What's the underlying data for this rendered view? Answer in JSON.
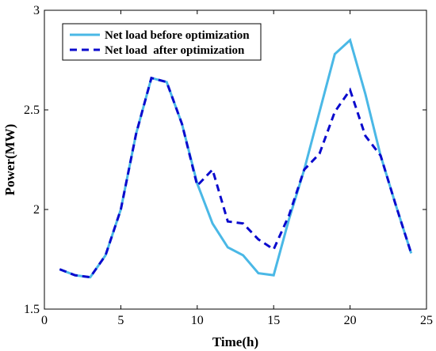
{
  "chart_data": {
    "type": "line",
    "xlabel": "Time(h)",
    "ylabel": "Power(MW)",
    "xlim": [
      0,
      25
    ],
    "ylim": [
      1.5,
      3
    ],
    "xticks": [
      0,
      5,
      10,
      15,
      20,
      25
    ],
    "yticks": [
      1.5,
      2,
      2.5,
      3
    ],
    "ytick_labels": [
      "1.5",
      "2",
      "2.5",
      "3"
    ],
    "grid": false,
    "legend_position": "top-left",
    "x": [
      1,
      2,
      3,
      4,
      5,
      6,
      7,
      8,
      9,
      10,
      11,
      12,
      13,
      14,
      15,
      16,
      17,
      18,
      19,
      20,
      21,
      22,
      23,
      24
    ],
    "series": [
      {
        "name": "Net load before optimization",
        "color": "#4ab8e6",
        "style": "solid",
        "values": [
          1.7,
          1.67,
          1.66,
          1.77,
          2.0,
          2.38,
          2.66,
          2.64,
          2.43,
          2.13,
          1.93,
          1.81,
          1.77,
          1.68,
          1.67,
          1.95,
          2.2,
          2.49,
          2.78,
          2.85,
          2.58,
          2.27,
          2.02,
          1.78
        ]
      },
      {
        "name": "Net load  after optimization",
        "color": "#0a0acd",
        "style": "dashed",
        "values": [
          1.7,
          1.67,
          1.66,
          1.77,
          2.0,
          2.38,
          2.66,
          2.64,
          2.43,
          2.12,
          2.2,
          1.94,
          1.93,
          1.85,
          1.8,
          1.97,
          2.2,
          2.28,
          2.49,
          2.6,
          2.37,
          2.27,
          2.02,
          1.78
        ]
      }
    ]
  }
}
